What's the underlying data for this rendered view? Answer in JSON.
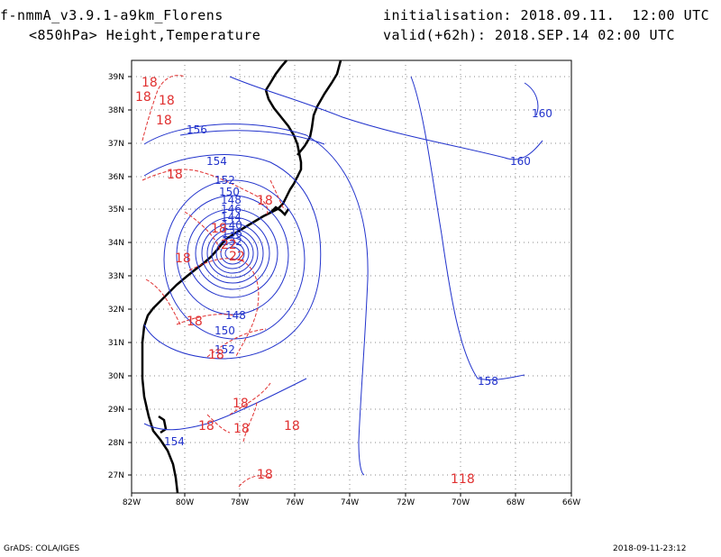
{
  "header": {
    "model": "f-nmmA_v3.9.1-a9km_Florens",
    "field": "<850hPa> Height,Temperature",
    "init": "initialisation: 2018.09.11.  12:00 UTC",
    "valid": "valid(+62h): 2018.SEP.14 02:00 UTC"
  },
  "footer": {
    "left": "GrADS: COLA/IGES",
    "right": "2018-09-11-23:12"
  },
  "map": {
    "lon_labels": [
      "82W",
      "80W",
      "78W",
      "76W",
      "74W",
      "72W",
      "70W",
      "68W",
      "66W"
    ],
    "lat_labels": [
      "39N",
      "38N",
      "37N",
      "36N",
      "35N",
      "34N",
      "33N",
      "32N",
      "31N",
      "30N",
      "29N",
      "28N",
      "27N"
    ],
    "height_contour_color": "#2233cc",
    "temperature_contour_color": "#e03030",
    "height_labels": [
      "160",
      "160",
      "156",
      "154",
      "152",
      "150",
      "148",
      "146",
      "144",
      "140",
      "136",
      "132",
      "148",
      "150",
      "152",
      "158",
      "154"
    ],
    "temperature_labels": [
      "18",
      "18",
      "18",
      "18",
      "18",
      "18",
      "18",
      "22",
      "22",
      "18",
      "18",
      "18",
      "18",
      "18",
      "18",
      "18",
      "118",
      "18"
    ]
  }
}
